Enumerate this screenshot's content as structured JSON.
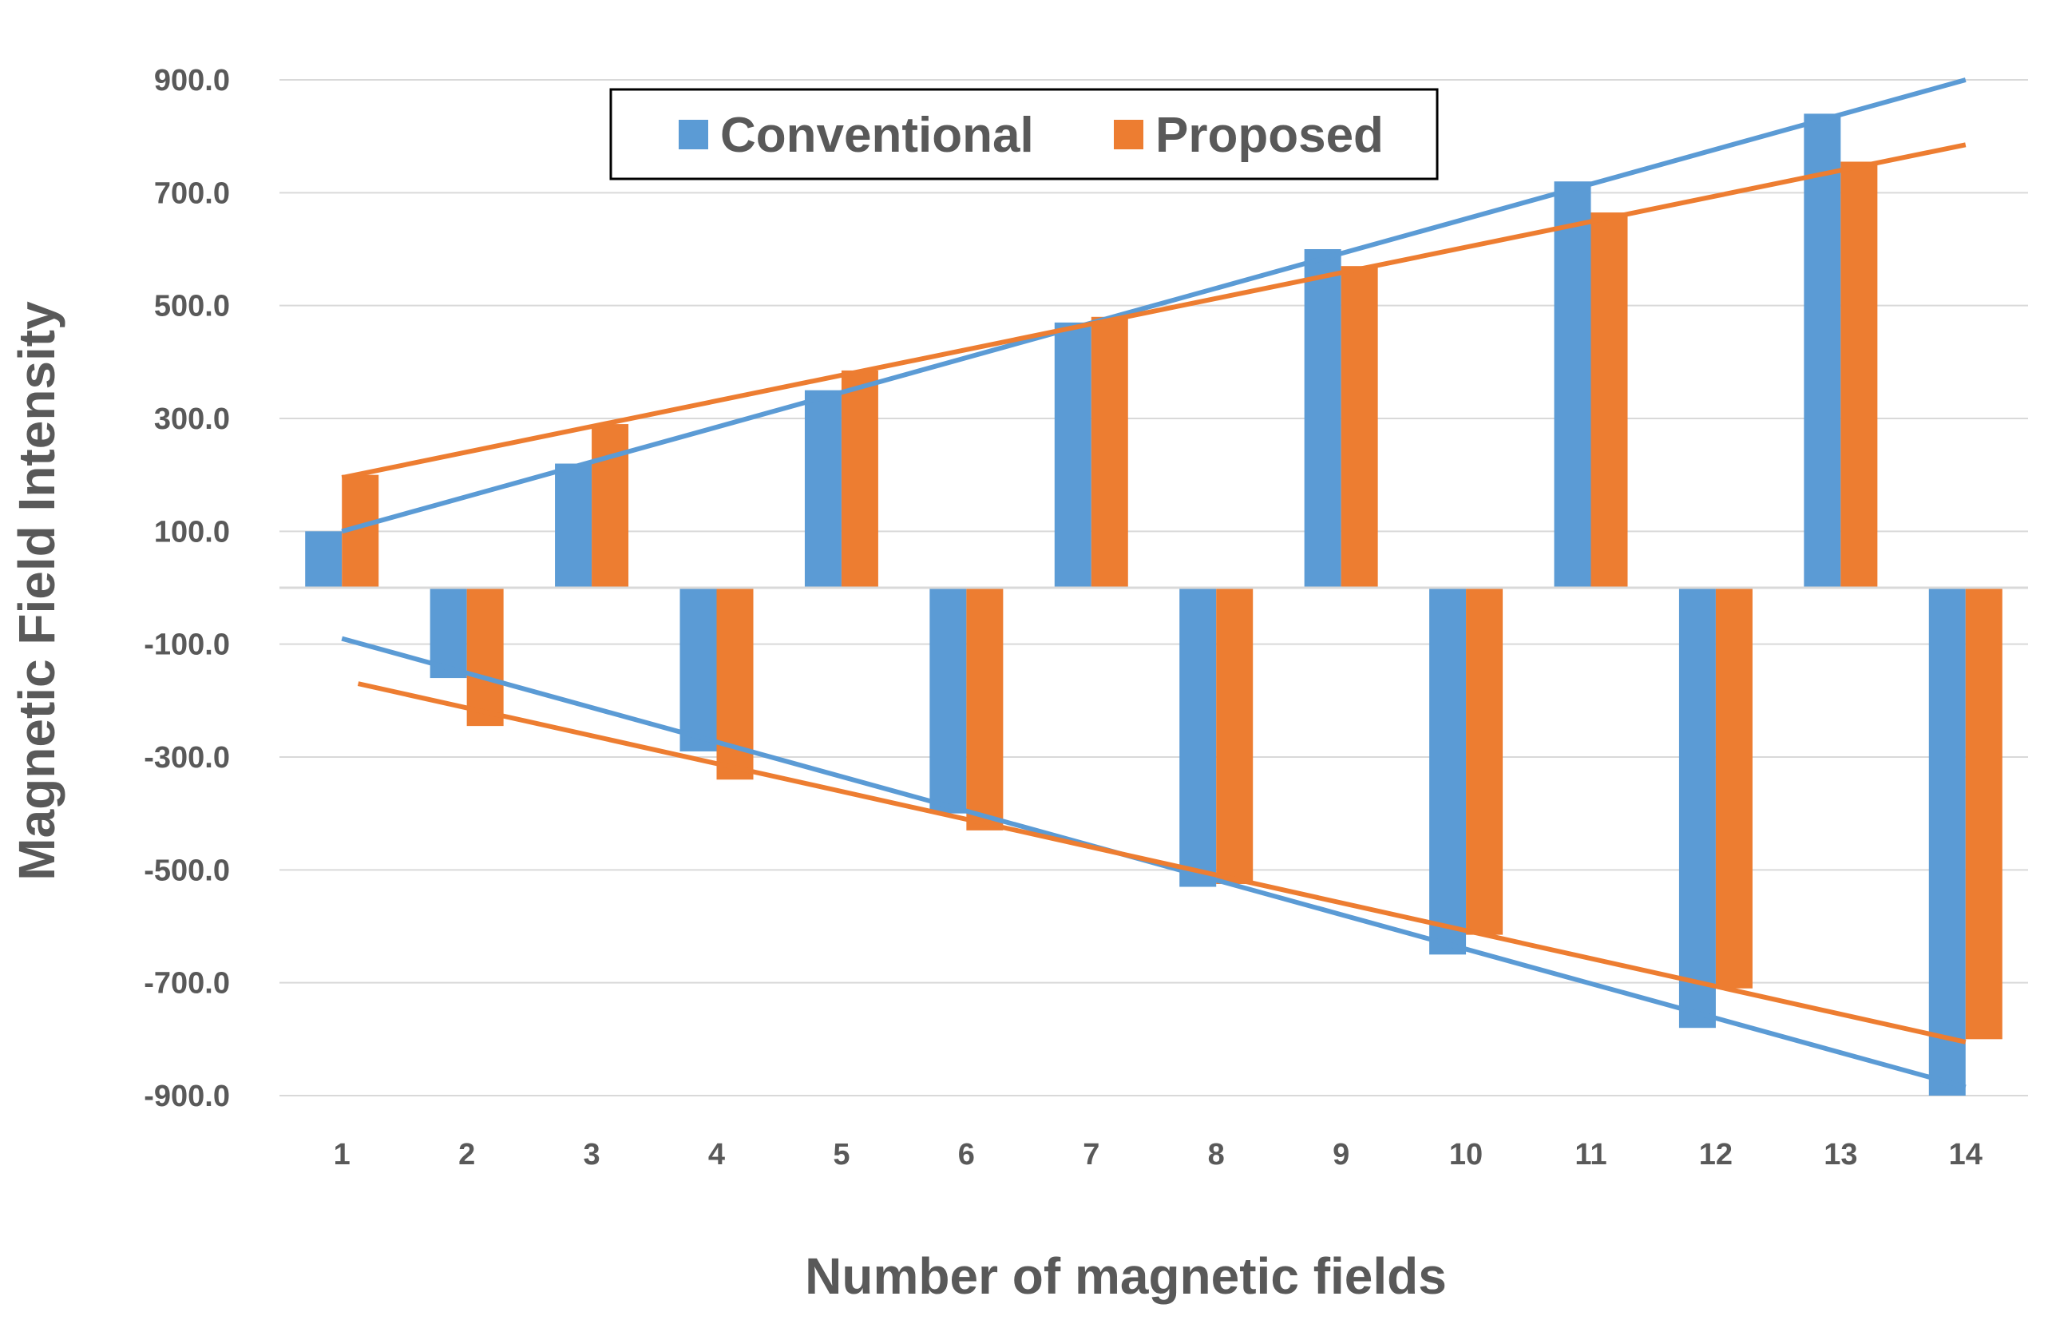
{
  "chart_data": {
    "type": "bar",
    "title": "",
    "xlabel": "Number of magnetic fields",
    "ylabel": "Magnetic Field Intensity",
    "ylim": [
      -900,
      900
    ],
    "yticks": [
      900,
      700,
      500,
      300,
      100,
      -100,
      -300,
      -500,
      -700,
      -900
    ],
    "ytick_labels": [
      "900.0",
      "700.0",
      "500.0",
      "300.0",
      "100.0",
      "-100.0",
      "-300.0",
      "-500.0",
      "-700.0",
      "-900.0"
    ],
    "categories": [
      "1",
      "2",
      "3",
      "4",
      "5",
      "6",
      "7",
      "8",
      "9",
      "10",
      "11",
      "12",
      "13",
      "14"
    ],
    "grid": true,
    "legend_position": "top-center",
    "series": [
      {
        "name": "Conventional",
        "color": "#5B9BD5",
        "values": [
          100,
          -160,
          220,
          -290,
          350,
          -400,
          470,
          -530,
          600,
          -650,
          720,
          -780,
          840,
          -900
        ]
      },
      {
        "name": "Proposed",
        "color": "#ED7D31",
        "values": [
          200,
          -245,
          290,
          -340,
          385,
          -430,
          480,
          -525,
          570,
          -615,
          665,
          -710,
          755,
          -800
        ]
      }
    ],
    "trendlines": [
      {
        "series": "Conventional",
        "color": "#5B9BD5",
        "from": {
          "x": 1,
          "y": 100
        },
        "to": {
          "x": 14,
          "y": 900
        }
      },
      {
        "series": "Proposed",
        "color": "#ED7D31",
        "from": {
          "x": 1,
          "y": 195
        },
        "to": {
          "x": 14,
          "y": 785
        }
      },
      {
        "series": "Conventional",
        "color": "#5B9BD5",
        "from": {
          "x": 1,
          "y": -90
        },
        "to": {
          "x": 14,
          "y": -885
        }
      },
      {
        "series": "Proposed",
        "color": "#ED7D31",
        "from": {
          "x": 1.13,
          "y": -170
        },
        "to": {
          "x": 14,
          "y": -805
        }
      }
    ]
  }
}
